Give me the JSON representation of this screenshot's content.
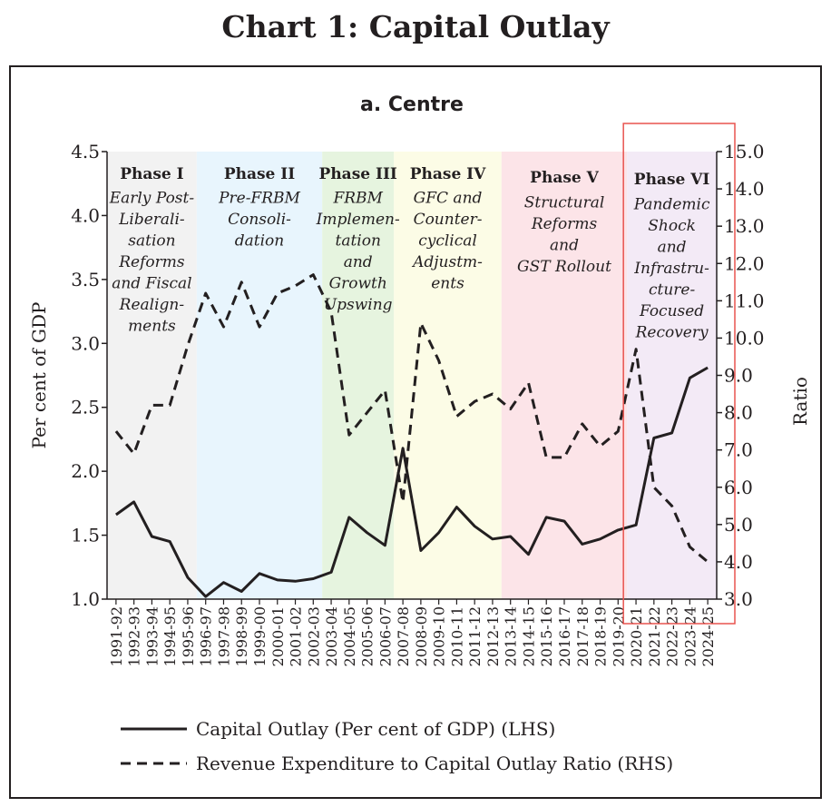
{
  "title": "Chart 1: Capital Outlay",
  "chart_data": {
    "type": "line",
    "title": "a. Centre",
    "ylabel_left": "Per cent of GDP",
    "ylabel_right": "Ratio",
    "ylim_left": [
      1.0,
      4.5
    ],
    "ylim_right": [
      3.0,
      15.0
    ],
    "yticks_left": [
      "1.0",
      "1.5",
      "2.0",
      "2.5",
      "3.0",
      "3.5",
      "4.0",
      "4.5"
    ],
    "yticks_right": [
      "3.0",
      "4.0",
      "5.0",
      "6.0",
      "7.0",
      "8.0",
      "9.0",
      "10.0",
      "11.0",
      "12.0",
      "13.0",
      "14.0",
      "15.0"
    ],
    "categories": [
      "1991-92",
      "1992-93",
      "1993-94",
      "1994-95",
      "1995-96",
      "1996-97",
      "1997-98",
      "1998-99",
      "1999-00",
      "2000-01",
      "2001-02",
      "2002-03",
      "2003-04",
      "2004-05",
      "2005-06",
      "2006-07",
      "2007-08",
      "2008-09",
      "2009-10",
      "2010-11",
      "2011-12",
      "2012-13",
      "2013-14",
      "2014-15",
      "2015-16",
      "2016-17",
      "2017-18",
      "2018-19",
      "2019-20",
      "2020-21",
      "2021-22",
      "2022-23",
      "2023-24",
      "2024-25"
    ],
    "series": [
      {
        "name": "Capital Outlay (Per cent of GDP) (LHS)",
        "axis": "left",
        "style": "solid",
        "values": [
          1.66,
          1.76,
          1.49,
          1.45,
          1.17,
          1.02,
          1.13,
          1.06,
          1.2,
          1.15,
          1.14,
          1.16,
          1.21,
          1.64,
          1.52,
          1.42,
          2.18,
          1.38,
          1.52,
          1.72,
          1.57,
          1.47,
          1.49,
          1.35,
          1.64,
          1.61,
          1.43,
          1.47,
          1.54,
          1.58,
          2.26,
          2.3,
          2.73,
          2.81
        ]
      },
      {
        "name": "Revenue Expenditure to Capital Outlay Ratio (RHS)",
        "axis": "right",
        "style": "dashed",
        "values": [
          7.5,
          6.9,
          8.2,
          8.2,
          9.8,
          11.2,
          10.3,
          11.5,
          10.3,
          11.2,
          11.4,
          11.7,
          10.7,
          7.4,
          8.0,
          8.6,
          5.6,
          10.4,
          9.4,
          7.9,
          8.3,
          8.5,
          8.1,
          8.8,
          6.8,
          6.8,
          7.7,
          7.1,
          7.5,
          9.7,
          6.0,
          5.5,
          4.4,
          4.0
        ]
      }
    ],
    "phases": [
      {
        "name": "Phase I",
        "desc": [
          "Early Post-",
          "Liberali-",
          "sation",
          "Reforms",
          "and Fiscal",
          "Realign-",
          "ments"
        ],
        "start": "1991-92",
        "end": "1995-96",
        "color": "#f2f2f2"
      },
      {
        "name": "Phase II",
        "desc": [
          "Pre-FRBM",
          "Consoli-",
          "dation"
        ],
        "start": "1996-97",
        "end": "2002-03",
        "color": "#e8f5fd"
      },
      {
        "name": "Phase III",
        "desc": [
          "FRBM",
          "Implemen-",
          "tation",
          "and",
          "Growth",
          "Upswing"
        ],
        "start": "2003-04",
        "end": "2006-07",
        "color": "#e6f4df"
      },
      {
        "name": "Phase IV",
        "desc": [
          "GFC and",
          "Counter-",
          "cyclical",
          "Adjustm-",
          "ents"
        ],
        "start": "2007-08",
        "end": "2012-13",
        "color": "#fcfce6"
      },
      {
        "name": "Phase V",
        "desc": [
          "Structural",
          "Reforms",
          "and",
          "GST Rollout"
        ],
        "start": "2013-14",
        "end": "2019-20",
        "color": "#fce4e8"
      },
      {
        "name": "Phase VI",
        "desc": [
          "Pandemic",
          "Shock",
          "and",
          "Infrastru-",
          "cture-",
          "Focused",
          "Recovery"
        ],
        "start": "2020-21",
        "end": "2024-25",
        "color": "#f3eaf6"
      }
    ],
    "highlight": {
      "start": "2020-21",
      "end": "2024-25",
      "color": "#e8534f"
    },
    "grid": false,
    "legend_position": "bottom"
  }
}
